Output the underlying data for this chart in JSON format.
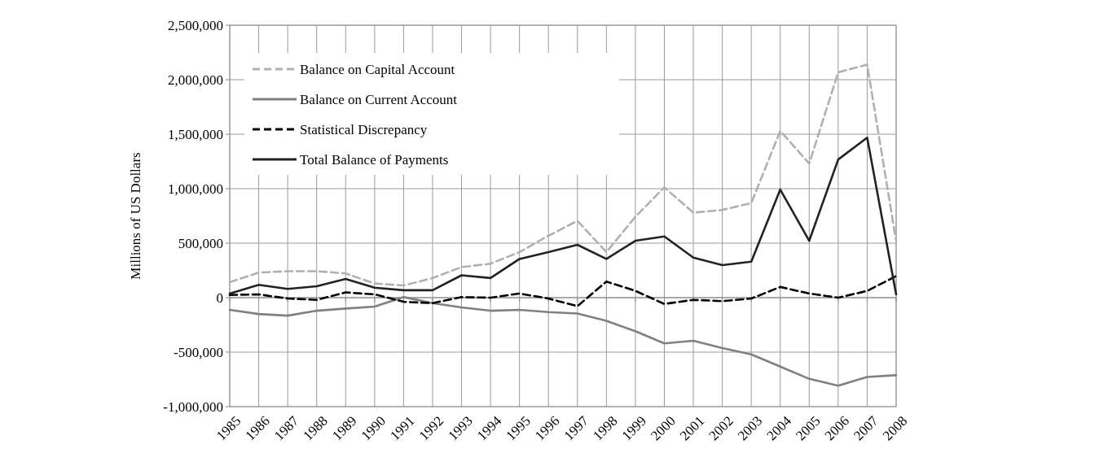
{
  "chart_data": {
    "type": "line",
    "ylabel": "Millions of US Dollars",
    "categories": [
      "1985",
      "1986",
      "1987",
      "1988",
      "1989",
      "1990",
      "1991",
      "1992",
      "1993",
      "1994",
      "1995",
      "1996",
      "1997",
      "1998",
      "1999",
      "2000",
      "2001",
      "2002",
      "2003",
      "2004",
      "2005",
      "2006",
      "2007",
      "2008"
    ],
    "series": [
      {
        "name": "Balance on Capital Account",
        "color": "#b0b0b0",
        "line_style": "dashed",
        "values": [
          142000,
          230000,
          243000,
          243000,
          222000,
          130000,
          112000,
          180000,
          280000,
          312000,
          418000,
          568000,
          705000,
          418000,
          742000,
          1012000,
          780000,
          805000,
          868000,
          1530000,
          1230000,
          2068000,
          2138000,
          518000
        ]
      },
      {
        "name": "Balance on Current Account",
        "color": "#808080",
        "line_style": "solid",
        "values": [
          -112000,
          -150000,
          -165000,
          -120000,
          -100000,
          -82000,
          5000,
          -50000,
          -90000,
          -120000,
          -112000,
          -132000,
          -145000,
          -212000,
          -308000,
          -420000,
          -395000,
          -462000,
          -520000,
          -632000,
          -745000,
          -808000,
          -728000,
          -712000
        ]
      },
      {
        "name": "Statistical Discrepancy",
        "color": "#000000",
        "line_style": "dashed",
        "values": [
          25000,
          30000,
          -8000,
          -20000,
          48000,
          30000,
          -38000,
          -50000,
          5000,
          0,
          38000,
          -8000,
          -78000,
          148000,
          62000,
          -58000,
          -20000,
          -32000,
          -8000,
          98000,
          38000,
          0,
          62000,
          198000
        ]
      },
      {
        "name": "Total Balance of Payments",
        "color": "#222222",
        "line_style": "solid",
        "values": [
          38000,
          118000,
          80000,
          105000,
          172000,
          92000,
          68000,
          68000,
          205000,
          180000,
          355000,
          418000,
          485000,
          355000,
          522000,
          562000,
          368000,
          298000,
          330000,
          992000,
          522000,
          1268000,
          1468000,
          30000
        ]
      }
    ],
    "ylim": [
      -1000000,
      2500000
    ],
    "yticks": [
      {
        "value": -1000000,
        "label": "-1,000,000"
      },
      {
        "value": -500000,
        "label": "-500,000"
      },
      0,
      {
        "value": 500000,
        "label": "500,000"
      },
      {
        "value": 1000000,
        "label": "1,000,000"
      },
      {
        "value": 1500000,
        "label": "1,500,000"
      },
      {
        "value": 2000000,
        "label": "2,000,000"
      },
      {
        "value": 2500000,
        "label": "2,500,000"
      }
    ],
    "grid": true,
    "legend": "top left",
    "marker": "none"
  }
}
